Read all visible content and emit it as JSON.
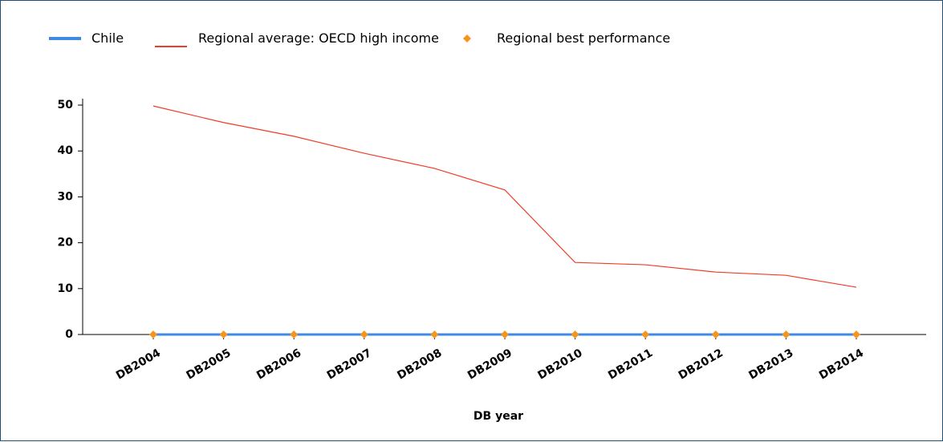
{
  "chart_data": {
    "type": "line",
    "x_label": "DB year",
    "categories": [
      "DB2004",
      "DB2005",
      "DB2006",
      "DB2007",
      "DB2008",
      "DB2009",
      "DB2010",
      "DB2011",
      "DB2012",
      "DB2013",
      "DB2014"
    ],
    "series": [
      {
        "name": "Chile",
        "color": "#3f8ae6",
        "type": "line",
        "values": [
          0,
          0,
          0,
          0,
          0,
          0,
          0,
          0,
          0,
          0,
          0
        ]
      },
      {
        "name": "Regional average: OECD high income",
        "color": "#f03c28",
        "type": "line",
        "values": [
          49.8,
          46.2,
          43.2,
          39.5,
          36.2,
          31.5,
          15.7,
          15.2,
          13.6,
          12.9,
          10.3
        ]
      },
      {
        "name": "Regional best performance",
        "color": "#f7941d",
        "type": "scatter",
        "values": [
          0,
          0,
          0,
          0,
          0,
          0,
          0,
          0,
          0,
          0,
          0
        ]
      }
    ],
    "ylim": [
      0,
      50
    ],
    "yticks": [
      0,
      10,
      20,
      30,
      40,
      50
    ],
    "legend": "top"
  }
}
